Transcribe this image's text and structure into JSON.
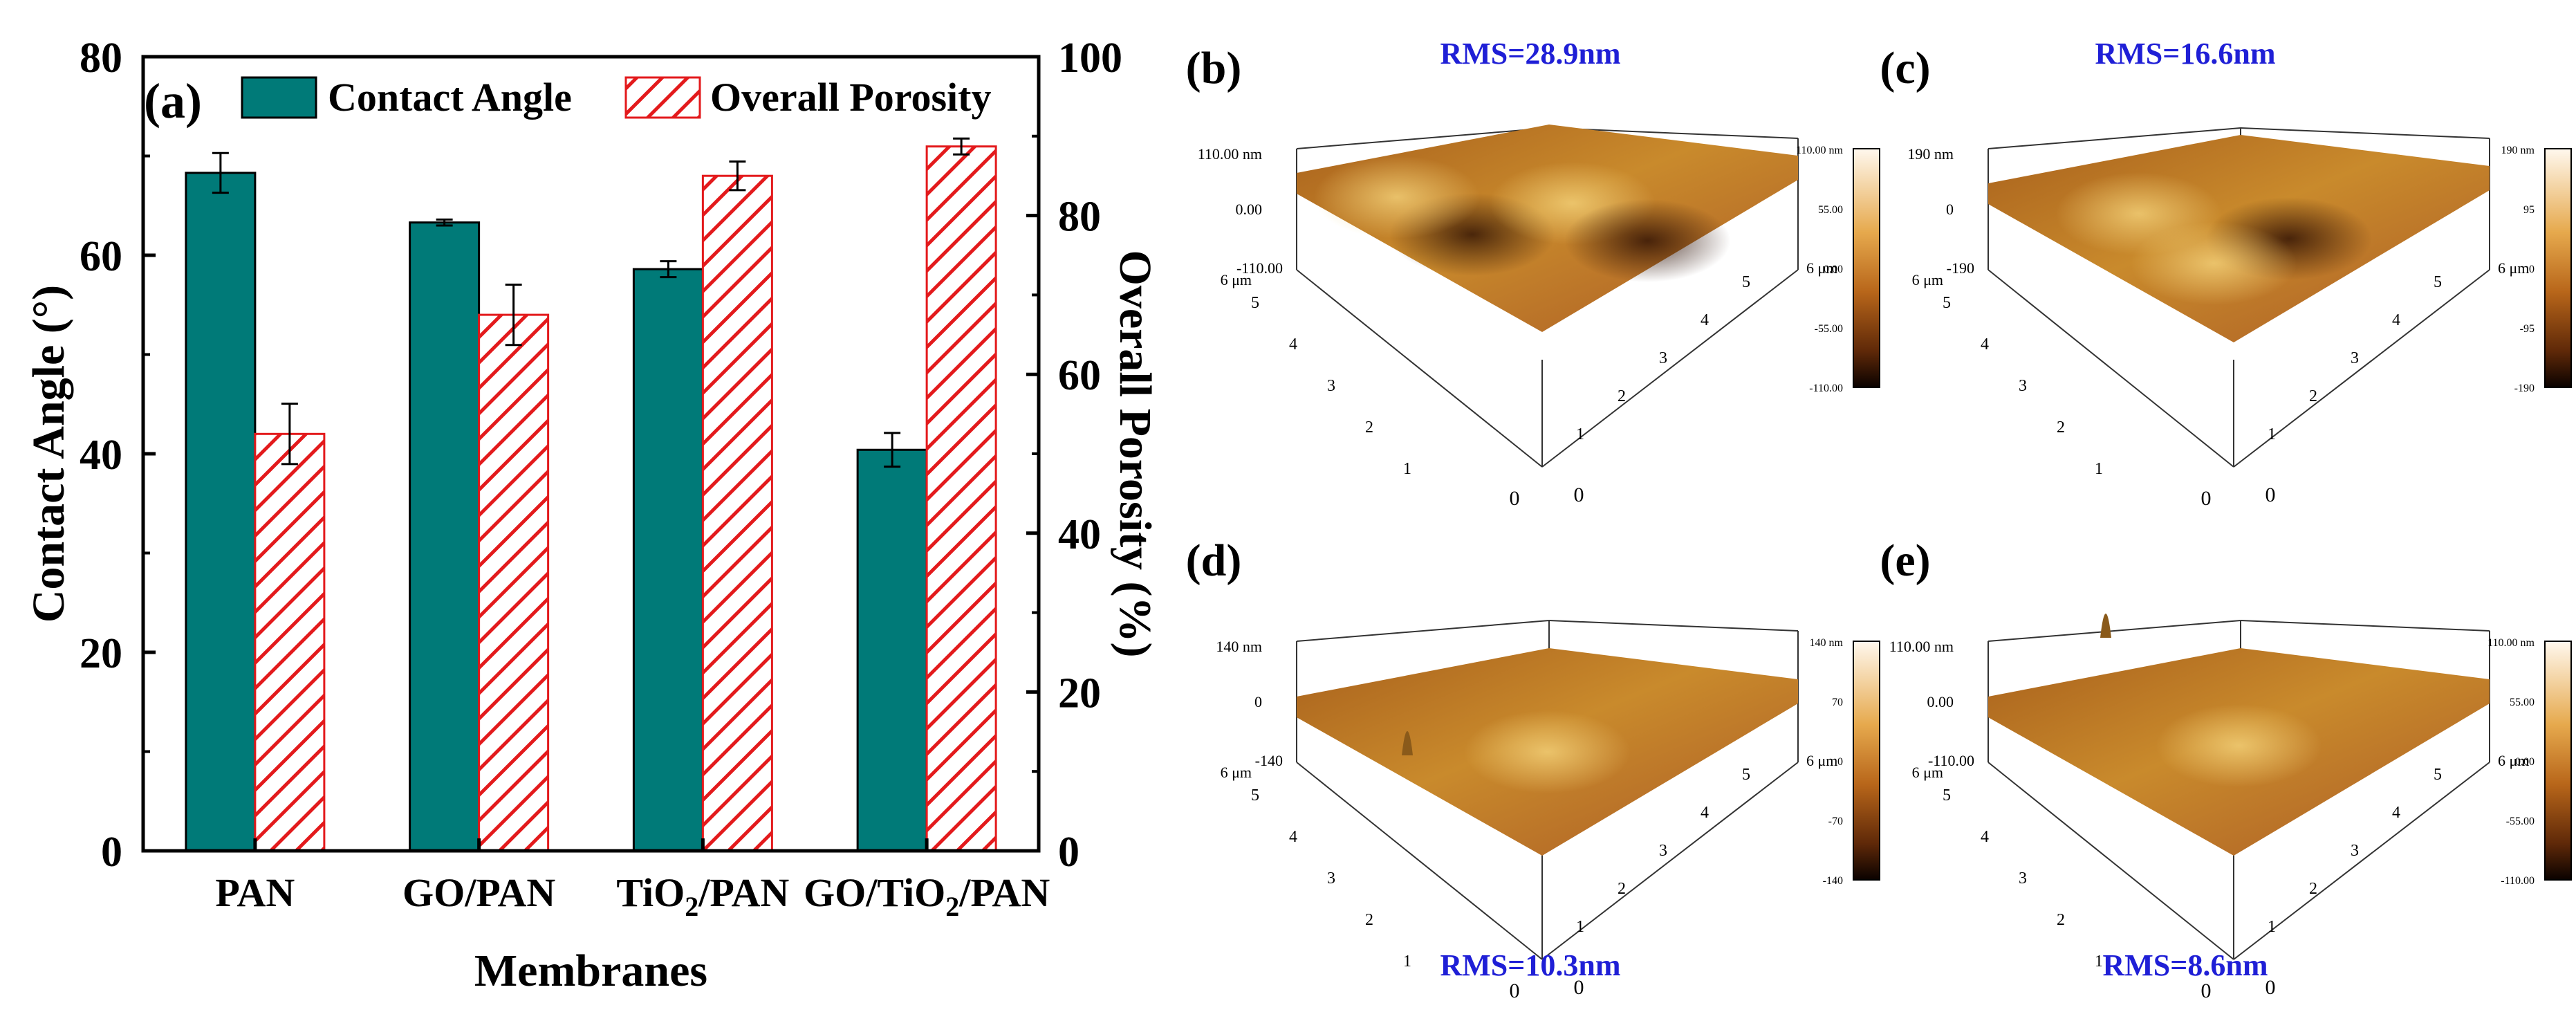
{
  "chart_data": [
    {
      "panel": "(a)",
      "type": "bar",
      "categories": [
        "PAN",
        "GO/PAN",
        "TiO2/PAN",
        "GO/TiO2/PAN"
      ],
      "category_labels": [
        {
          "main": "PAN",
          "sub": "",
          "rest": ""
        },
        {
          "main": "GO/PAN",
          "sub": "",
          "rest": ""
        },
        {
          "main": "TiO",
          "sub": "2",
          "rest": "/PAN"
        },
        {
          "main": "GO/TiO",
          "sub": "2",
          "rest": "/PAN"
        }
      ],
      "xlabel": "Membranes",
      "ylabel": "Contact Angle (°)",
      "ylabel_right": "Overall Porosity (%)",
      "ylim": [
        0,
        80
      ],
      "yticks": [
        0,
        20,
        40,
        60,
        80
      ],
      "ylim_right": [
        0,
        100
      ],
      "yticks_right": [
        0,
        20,
        40,
        60,
        80,
        100
      ],
      "legend": "top",
      "series": [
        {
          "name": "Contact Angle",
          "axis": "left",
          "color": "#007a78",
          "pattern": "solid",
          "values": [
            68.3,
            63.3,
            58.6,
            40.4
          ],
          "errors": [
            2.0,
            0.3,
            0.8,
            1.7
          ]
        },
        {
          "name": "Overall Porosity",
          "axis": "right",
          "color": "#e31a1c",
          "pattern": "hatch",
          "values": [
            52.5,
            67.5,
            85.0,
            88.7
          ],
          "errors": [
            3.8,
            3.8,
            1.8,
            1.0
          ]
        }
      ]
    },
    {
      "panel": "(b)",
      "type": "surface",
      "title": "RMS=28.9nm",
      "z_max": "110.00 nm",
      "z_mid": "0.00",
      "z_min": "-110.00",
      "scale": [
        "110.00 nm",
        "55.00",
        "0.00",
        "-55.00",
        "-110.00"
      ]
    },
    {
      "panel": "(c)",
      "type": "surface",
      "title": "RMS=16.6nm",
      "z_max": "190 nm",
      "z_mid": "0",
      "z_min": "-190",
      "scale": [
        "190 nm",
        "95",
        "0",
        "-95",
        "-190"
      ]
    },
    {
      "panel": "(d)",
      "type": "surface",
      "title": "RMS=10.3nm",
      "z_max": "140 nm",
      "z_mid": "0",
      "z_min": "-140",
      "scale": [
        "140 nm",
        "70",
        "0",
        "-70",
        "-140"
      ]
    },
    {
      "panel": "(e)",
      "type": "surface",
      "title": "RMS=8.6nm",
      "z_max": "110.00 nm",
      "z_mid": "0.00",
      "z_min": "-110.00",
      "scale": [
        "110.00 nm",
        "55.00",
        "0.00",
        "-55.00",
        "-110.00"
      ]
    }
  ],
  "afm_axis": {
    "axis_end": "6 μm",
    "ticks": [
      "1",
      "2",
      "3",
      "4",
      "5"
    ],
    "zero": "0"
  },
  "colors": {
    "accent": "#007a78",
    "hatch": "#e31a1c",
    "rms_title": "#1f1fd6"
  }
}
